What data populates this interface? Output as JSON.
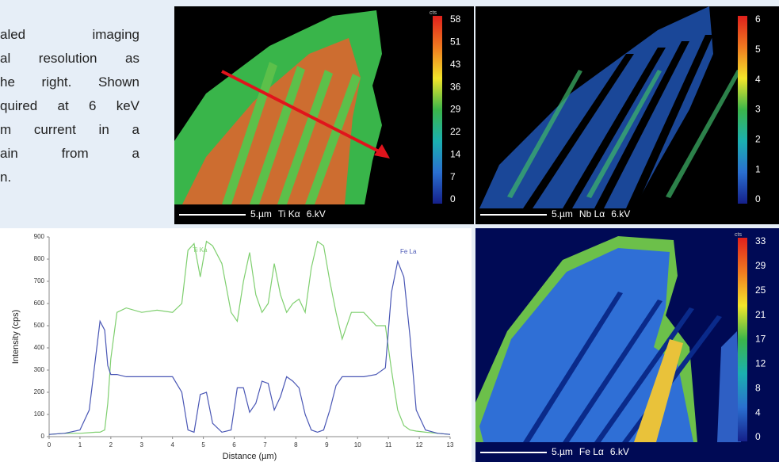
{
  "text_lines": [
    "aled imaging",
    "al resolution as",
    "he right. Shown",
    "quired at 6 keV",
    "m current in a",
    "ain from a",
    "n."
  ],
  "maps": [
    {
      "unit": "cts",
      "colorbar_ticks": [
        58,
        51,
        43,
        36,
        29,
        22,
        14,
        7,
        0
      ],
      "scale": "5.µm",
      "element": "Ti Kα",
      "voltage": "6.kV"
    },
    {
      "colorbar_ticks": [
        6,
        5,
        4,
        3,
        2,
        1,
        0
      ],
      "scale": "5.µm",
      "element": "Nb Lα",
      "voltage": "6.kV"
    },
    {
      "unit": "cts",
      "colorbar_ticks": [
        33,
        29,
        25,
        21,
        17,
        12,
        8,
        4,
        0
      ],
      "scale": "5.µm",
      "element": "Fe Lα",
      "voltage": "6.kV"
    }
  ],
  "chart_data": {
    "type": "line",
    "x_label": "Distance (µm)",
    "y_label": "Intensity (cps)",
    "x": [
      0,
      0.5,
      1,
      1.3,
      1.5,
      1.65,
      1.8,
      1.9,
      2.0,
      2.2,
      2.5,
      3,
      3.5,
      4,
      4.3,
      4.5,
      4.7,
      4.9,
      5.1,
      5.3,
      5.6,
      5.9,
      6.1,
      6.3,
      6.5,
      6.7,
      6.9,
      7.1,
      7.3,
      7.5,
      7.7,
      7.9,
      8.1,
      8.3,
      8.5,
      8.7,
      8.9,
      9.1,
      9.3,
      9.5,
      9.8,
      10.2,
      10.6,
      10.9,
      11.1,
      11.3,
      11.5,
      11.7,
      11.9,
      12.2,
      12.6,
      13
    ],
    "series": [
      {
        "name": "Ti Ka",
        "color": "#7fcf6f",
        "values": [
          10,
          15,
          15,
          18,
          20,
          20,
          30,
          150,
          350,
          560,
          580,
          560,
          570,
          560,
          600,
          840,
          870,
          720,
          880,
          860,
          780,
          560,
          520,
          700,
          830,
          640,
          560,
          600,
          780,
          640,
          560,
          600,
          620,
          560,
          760,
          880,
          860,
          700,
          560,
          440,
          560,
          560,
          500,
          500,
          300,
          120,
          50,
          30,
          25,
          20,
          15,
          10
        ]
      },
      {
        "name": "Fe La",
        "color": "#4a57b5",
        "values": [
          10,
          15,
          30,
          120,
          350,
          520,
          480,
          320,
          280,
          280,
          270,
          270,
          270,
          270,
          200,
          30,
          20,
          190,
          200,
          60,
          20,
          30,
          220,
          220,
          110,
          150,
          250,
          240,
          120,
          180,
          270,
          250,
          220,
          100,
          30,
          20,
          30,
          120,
          230,
          270,
          270,
          270,
          280,
          310,
          650,
          790,
          720,
          450,
          120,
          30,
          15,
          10
        ]
      }
    ],
    "xlim": [
      0,
      13
    ],
    "xticks": [
      0,
      1,
      2,
      3,
      4,
      5,
      6,
      7,
      8,
      9,
      10,
      11,
      12,
      13
    ],
    "ylim": [
      0,
      900
    ],
    "yticks": [
      0,
      100,
      200,
      300,
      400,
      500,
      600,
      700,
      800,
      900
    ]
  }
}
